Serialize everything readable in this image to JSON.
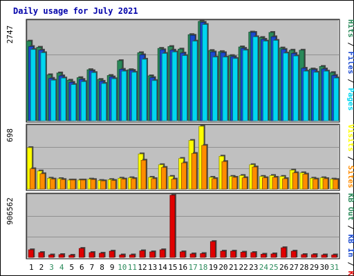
{
  "title": "Daily usage for July 2021",
  "colors": {
    "title": "#0000aa",
    "hits": "#2a8a5a",
    "files": "#1a4ad0",
    "pages": "#00d6f0",
    "visits": "#ffff00",
    "sites": "#ff8c00",
    "kbf": "#e00000",
    "kbin": "#1a4ad0",
    "kbout": "#2a8a5a",
    "plot_bg": "#c0c0c0",
    "weekend_day": "#2a8a5a"
  },
  "chart_data": [
    {
      "type": "bar",
      "panel": "top",
      "axis_max_label": "2747",
      "ylim": [
        0,
        2747
      ],
      "categories": [
        "1",
        "2",
        "3",
        "4",
        "5",
        "6",
        "7",
        "8",
        "9",
        "10",
        "11",
        "12",
        "13",
        "14",
        "15",
        "16",
        "17",
        "18",
        "19",
        "20",
        "21",
        "22",
        "23",
        "24",
        "25",
        "26",
        "27",
        "28",
        "29",
        "30",
        "31"
      ],
      "weekend_days": [
        "3",
        "4",
        "10",
        "11",
        "17",
        "18",
        "24",
        "25",
        "31"
      ],
      "legend": [
        "Hits",
        "Files",
        "Pages"
      ],
      "series": [
        {
          "name": "Hits",
          "values": [
            2200,
            2030,
            1270,
            1320,
            1120,
            1190,
            1410,
            1140,
            1250,
            1660,
            1410,
            1880,
            1240,
            2000,
            2050,
            1980,
            2380,
            2747,
            1940,
            1910,
            1800,
            2040,
            2450,
            2300,
            2440,
            2010,
            1950,
            1950,
            1430,
            1500,
            1330
          ]
        },
        {
          "name": "Files",
          "values": [
            2050,
            1950,
            1170,
            1240,
            1060,
            1140,
            1380,
            1090,
            1210,
            1420,
            1390,
            1820,
            1190,
            1960,
            1950,
            1870,
            2360,
            2720,
            1900,
            1880,
            1770,
            2000,
            2440,
            2250,
            2320,
            1970,
            1860,
            1450,
            1410,
            1430,
            1250
          ]
        },
        {
          "name": "Pages",
          "values": [
            1970,
            1880,
            1120,
            1180,
            1000,
            1080,
            1330,
            1030,
            1160,
            1370,
            1340,
            1700,
            1110,
            1860,
            1900,
            1800,
            2200,
            2660,
            1760,
            1760,
            1720,
            1950,
            2320,
            2200,
            2220,
            1870,
            1790,
            1370,
            1340,
            1370,
            1180
          ]
        }
      ]
    },
    {
      "type": "bar",
      "panel": "middle",
      "axis_max_label": "698",
      "ylim": [
        0,
        698
      ],
      "categories": [
        "1",
        "2",
        "3",
        "4",
        "5",
        "6",
        "7",
        "8",
        "9",
        "10",
        "11",
        "12",
        "13",
        "14",
        "15",
        "16",
        "17",
        "18",
        "19",
        "20",
        "21",
        "22",
        "23",
        "24",
        "25",
        "26",
        "27",
        "28",
        "29",
        "30",
        "31"
      ],
      "legend": [
        "Visits",
        "Sites"
      ],
      "series": [
        {
          "name": "Visits",
          "values": [
            460,
            200,
            120,
            115,
            100,
            100,
            110,
            95,
            105,
            120,
            125,
            390,
            130,
            270,
            140,
            340,
            540,
            698,
            130,
            365,
            140,
            150,
            270,
            140,
            150,
            140,
            210,
            180,
            120,
            125,
            110
          ]
        },
        {
          "name": "Sites",
          "values": [
            225,
            170,
            110,
            105,
            100,
            100,
            105,
            90,
            95,
            110,
            115,
            320,
            115,
            240,
            110,
            290,
            395,
            485,
            115,
            305,
            130,
            125,
            245,
            125,
            130,
            115,
            180,
            165,
            110,
            115,
            105
          ]
        }
      ]
    },
    {
      "type": "bar",
      "panel": "bottom",
      "axis_max_label": "906562",
      "ylim": [
        0,
        906562
      ],
      "categories": [
        "1",
        "2",
        "3",
        "4",
        "5",
        "6",
        "7",
        "8",
        "9",
        "10",
        "11",
        "12",
        "13",
        "14",
        "15",
        "16",
        "17",
        "18",
        "19",
        "20",
        "21",
        "22",
        "23",
        "24",
        "25",
        "26",
        "27",
        "28",
        "29",
        "30",
        "31"
      ],
      "legend": [
        "KB F",
        "KB In",
        "KB Out"
      ],
      "series": [
        {
          "name": "KB F",
          "values": [
            110000,
            70000,
            35000,
            40000,
            30000,
            130000,
            70000,
            60000,
            90000,
            35000,
            35000,
            95000,
            80000,
            110000,
            906562,
            80000,
            50000,
            55000,
            230000,
            90000,
            90000,
            75000,
            70000,
            45000,
            50000,
            140000,
            90000,
            40000,
            40000,
            35000,
            35000
          ]
        }
      ]
    }
  ]
}
